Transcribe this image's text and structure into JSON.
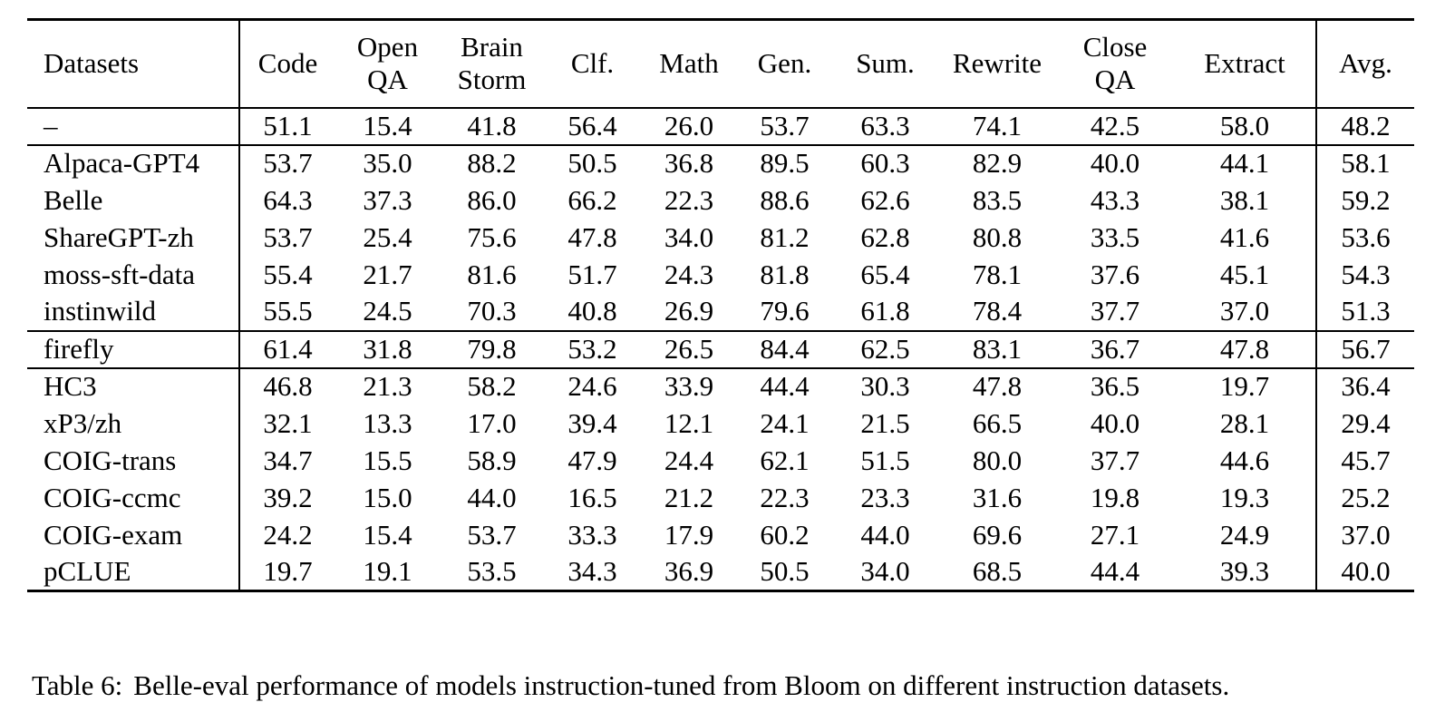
{
  "colors": {
    "background": "#ffffff",
    "text": "#000000",
    "rule": "#000000"
  },
  "table": {
    "columns": [
      "Datasets",
      "Code",
      "Open\nQA",
      "Brain\nStorm",
      "Clf.",
      "Math",
      "Gen.",
      "Sum.",
      "Rewrite",
      "Close\nQA",
      "Extract",
      "Avg."
    ],
    "groups": [
      {
        "name": "baseline",
        "rows": [
          {
            "dataset": "–",
            "values": [
              "51.1",
              "15.4",
              "41.8",
              "56.4",
              "26.0",
              "53.7",
              "63.3",
              "74.1",
              "42.5",
              "58.0",
              "48.2"
            ]
          }
        ]
      },
      {
        "name": "main-instruction-sets",
        "rows": [
          {
            "dataset": "Alpaca-GPT4",
            "values": [
              "53.7",
              "35.0",
              "88.2",
              "50.5",
              "36.8",
              "89.5",
              "60.3",
              "82.9",
              "40.0",
              "44.1",
              "58.1"
            ]
          },
          {
            "dataset": "Belle",
            "values": [
              "64.3",
              "37.3",
              "86.0",
              "66.2",
              "22.3",
              "88.6",
              "62.6",
              "83.5",
              "43.3",
              "38.1",
              "59.2"
            ]
          },
          {
            "dataset": "ShareGPT-zh",
            "values": [
              "53.7",
              "25.4",
              "75.6",
              "47.8",
              "34.0",
              "81.2",
              "62.8",
              "80.8",
              "33.5",
              "41.6",
              "53.6"
            ]
          },
          {
            "dataset": "moss-sft-data",
            "values": [
              "55.4",
              "21.7",
              "81.6",
              "51.7",
              "24.3",
              "81.8",
              "65.4",
              "78.1",
              "37.6",
              "45.1",
              "54.3"
            ]
          },
          {
            "dataset": "instinwild",
            "values": [
              "55.5",
              "24.5",
              "70.3",
              "40.8",
              "26.9",
              "79.6",
              "61.8",
              "78.4",
              "37.7",
              "37.0",
              "51.3"
            ]
          }
        ]
      },
      {
        "name": "firefly",
        "rows": [
          {
            "dataset": "firefly",
            "values": [
              "61.4",
              "31.8",
              "79.8",
              "53.2",
              "26.5",
              "84.4",
              "62.5",
              "83.1",
              "36.7",
              "47.8",
              "56.7"
            ]
          }
        ]
      },
      {
        "name": "other-sets",
        "rows": [
          {
            "dataset": "HC3",
            "values": [
              "46.8",
              "21.3",
              "58.2",
              "24.6",
              "33.9",
              "44.4",
              "30.3",
              "47.8",
              "36.5",
              "19.7",
              "36.4"
            ]
          },
          {
            "dataset": "xP3/zh",
            "values": [
              "32.1",
              "13.3",
              "17.0",
              "39.4",
              "12.1",
              "24.1",
              "21.5",
              "66.5",
              "40.0",
              "28.1",
              "29.4"
            ]
          },
          {
            "dataset": "COIG-trans",
            "values": [
              "34.7",
              "15.5",
              "58.9",
              "47.9",
              "24.4",
              "62.1",
              "51.5",
              "80.0",
              "37.7",
              "44.6",
              "45.7"
            ]
          },
          {
            "dataset": "COIG-ccmc",
            "values": [
              "39.2",
              "15.0",
              "44.0",
              "16.5",
              "21.2",
              "22.3",
              "23.3",
              "31.6",
              "19.8",
              "19.3",
              "25.2"
            ]
          },
          {
            "dataset": "COIG-exam",
            "values": [
              "24.2",
              "15.4",
              "53.7",
              "33.3",
              "17.9",
              "60.2",
              "44.0",
              "69.6",
              "27.1",
              "24.9",
              "37.0"
            ]
          },
          {
            "dataset": "pCLUE",
            "values": [
              "19.7",
              "19.1",
              "53.5",
              "34.3",
              "36.9",
              "50.5",
              "34.0",
              "68.5",
              "44.4",
              "39.3",
              "40.0"
            ]
          }
        ]
      }
    ]
  },
  "caption": {
    "label": "Table 6:",
    "text": "Belle-eval performance of models instruction-tuned from Bloom on different instruction datasets."
  }
}
